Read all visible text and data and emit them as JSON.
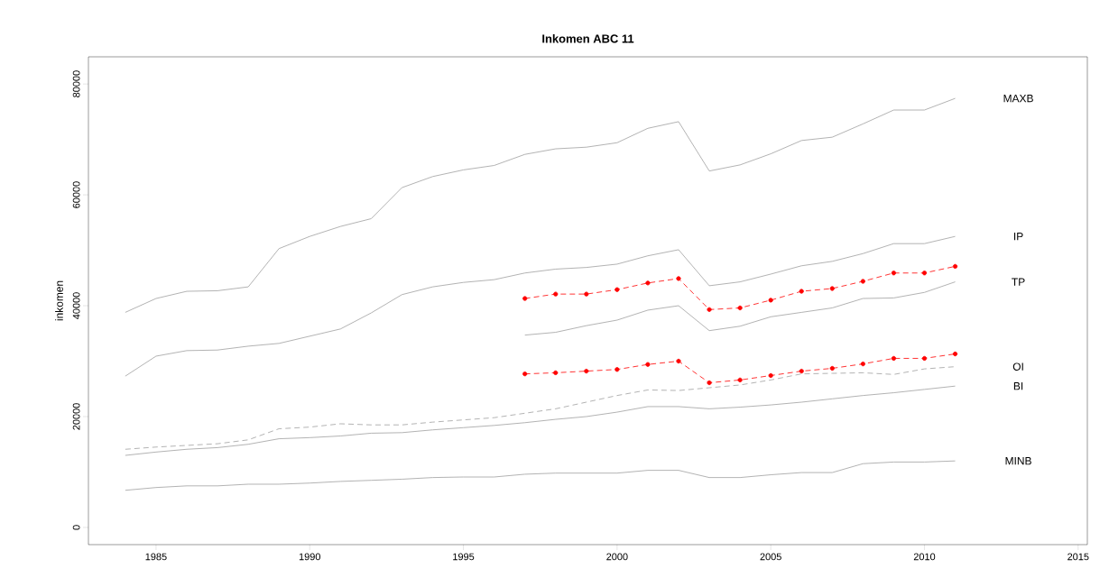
{
  "chart_data": {
    "type": "line",
    "title": "Inkomen ABC 11",
    "ylabel": "inkomen",
    "x": [
      1984,
      1985,
      1986,
      1987,
      1988,
      1989,
      1990,
      1991,
      1992,
      1993,
      1994,
      1995,
      1996,
      1997,
      1998,
      1999,
      2000,
      2001,
      2002,
      2003,
      2004,
      2005,
      2006,
      2007,
      2008,
      2009,
      2010,
      2011
    ],
    "xlim": [
      1982.8,
      2015.3
    ],
    "xticks": [
      1985,
      1990,
      1995,
      2000,
      2005,
      2010,
      2015
    ],
    "ylim": [
      -3100,
      84900
    ],
    "yticks": [
      0,
      20000,
      40000,
      60000,
      80000
    ],
    "grid": false,
    "legend": false,
    "series": [
      {
        "name": "MAXB",
        "color": "#a0a0a0",
        "line_style": "solid",
        "marker": "none",
        "values": [
          38800,
          41300,
          42600,
          42700,
          43400,
          50300,
          52500,
          54300,
          55700,
          61300,
          63300,
          64500,
          65300,
          67300,
          68300,
          68600,
          69400,
          72000,
          73200,
          64300,
          65400,
          67400,
          69800,
          70400,
          72800,
          75300,
          75300,
          77400
        ]
      },
      {
        "name": "IP",
        "color": "#a0a0a0",
        "line_style": "solid",
        "marker": "none",
        "values": [
          27300,
          30900,
          31900,
          32000,
          32700,
          33200,
          34500,
          35800,
          38700,
          42000,
          43400,
          44200,
          44700,
          45900,
          46600,
          46900,
          47500,
          49000,
          50100,
          43600,
          44300,
          45700,
          47200,
          48000,
          49400,
          51200,
          51200,
          52500
        ]
      },
      {
        "color": "#ff0000",
        "line_style": "dashed",
        "marker": "circle",
        "x": [
          1997,
          1998,
          1999,
          2000,
          2001,
          2002,
          2003,
          2004,
          2005,
          2006,
          2007,
          2008,
          2009,
          2010,
          2011
        ],
        "values": [
          41300,
          42100,
          42100,
          42900,
          44100,
          44900,
          39300,
          39600,
          41000,
          42600,
          43100,
          44400,
          45900,
          45900,
          47100
        ]
      },
      {
        "name": "TP",
        "color": "#a0a0a0",
        "line_style": "solid",
        "marker": "none",
        "x": [
          1997,
          1998,
          1999,
          2000,
          2001,
          2002,
          2003,
          2004,
          2005,
          2006,
          2007,
          2008,
          2009,
          2010,
          2011
        ],
        "values": [
          34700,
          35200,
          36400,
          37400,
          39200,
          40000,
          35500,
          36300,
          38000,
          38800,
          39600,
          41300,
          41400,
          42400,
          44300
        ]
      },
      {
        "color": "#ff0000",
        "line_style": "dashed",
        "marker": "circle",
        "x": [
          1997,
          1998,
          1999,
          2000,
          2001,
          2002,
          2003,
          2004,
          2005,
          2006,
          2007,
          2008,
          2009,
          2010,
          2011
        ],
        "values": [
          27700,
          27900,
          28200,
          28500,
          29400,
          30000,
          26100,
          26600,
          27400,
          28200,
          28700,
          29500,
          30500,
          30500,
          31300
        ]
      },
      {
        "name": "OI",
        "color": "#a0a0a0",
        "line_style": "dashed",
        "marker": "none",
        "values": [
          14100,
          14500,
          14800,
          15100,
          15800,
          17800,
          18100,
          18700,
          18500,
          18500,
          19000,
          19400,
          19800,
          20600,
          21400,
          22600,
          23800,
          24800,
          24700,
          25200,
          25700,
          26600,
          27700,
          27800,
          27900,
          27600,
          28600,
          29000
        ]
      },
      {
        "name": "BI",
        "color": "#a0a0a0",
        "line_style": "solid",
        "marker": "none",
        "values": [
          13000,
          13600,
          14100,
          14400,
          15000,
          16000,
          16200,
          16500,
          17000,
          17100,
          17600,
          18000,
          18400,
          18900,
          19500,
          20000,
          20800,
          21800,
          21800,
          21400,
          21700,
          22100,
          22600,
          23200,
          23800,
          24300,
          24900,
          25500
        ]
      },
      {
        "name": "MINB",
        "color": "#a0a0a0",
        "line_style": "solid",
        "marker": "none",
        "values": [
          6700,
          7200,
          7500,
          7500,
          7800,
          7800,
          8000,
          8300,
          8500,
          8700,
          9000,
          9100,
          9100,
          9600,
          9800,
          9800,
          9800,
          10300,
          10300,
          9000,
          9000,
          9500,
          9900,
          9900,
          11500,
          11800,
          11800,
          12000
        ]
      }
    ]
  }
}
